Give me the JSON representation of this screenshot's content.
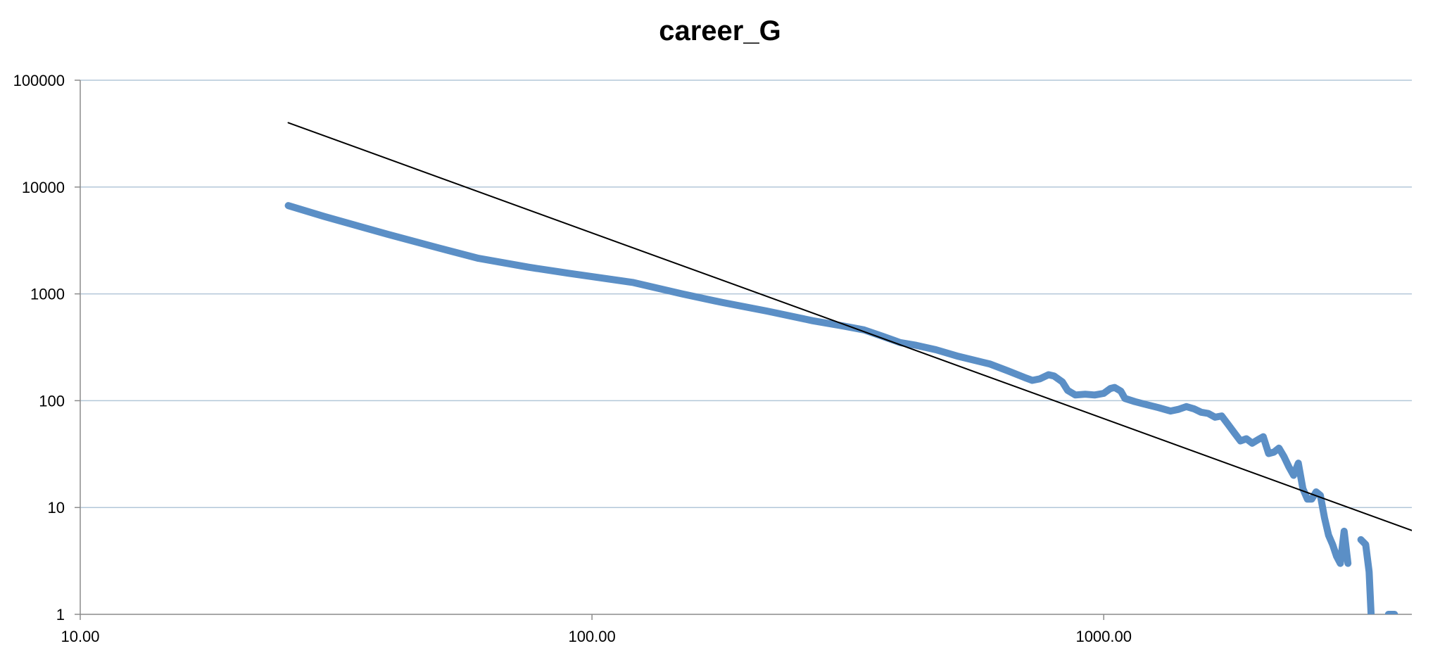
{
  "chart_data": {
    "type": "line",
    "title": "career_G",
    "xlabel": "",
    "ylabel": "",
    "x_scale": "log",
    "y_scale": "log",
    "xlim": [
      10,
      4000
    ],
    "ylim": [
      1,
      100000
    ],
    "x_ticks": [
      10,
      100,
      1000
    ],
    "x_tick_labels": [
      "10.00",
      "100.00",
      "1000.00"
    ],
    "y_ticks": [
      1,
      10,
      100,
      1000,
      10000,
      100000
    ],
    "y_tick_labels": [
      "1",
      "10",
      "100",
      "1000",
      "10000",
      "100000"
    ],
    "grid": "horizontal",
    "legend": "none",
    "series": [
      {
        "style": "data",
        "color": "#5b8fc6",
        "segments": [
          [
            [
              25.5,
              6700
            ],
            [
              30,
              5300
            ],
            [
              40,
              3600
            ],
            [
              50,
              2700
            ],
            [
              60,
              2150
            ],
            [
              75,
              1780
            ],
            [
              90,
              1560
            ],
            [
              100,
              1450
            ],
            [
              120,
              1280
            ],
            [
              150,
              1000
            ],
            [
              180,
              830
            ],
            [
              220,
              690
            ],
            [
              270,
              560
            ],
            [
              310,
              500
            ],
            [
              340,
              460
            ],
            [
              370,
              400
            ],
            [
              400,
              350
            ],
            [
              430,
              330
            ],
            [
              470,
              300
            ],
            [
              520,
              260
            ],
            [
              600,
              220
            ],
            [
              650,
              190
            ],
            [
              700,
              165
            ],
            [
              725,
              155
            ],
            [
              750,
              160
            ],
            [
              780,
              175
            ],
            [
              800,
              170
            ],
            [
              830,
              150
            ],
            [
              850,
              125
            ],
            [
              880,
              113
            ],
            [
              920,
              115
            ],
            [
              960,
              113
            ],
            [
              1000,
              117
            ],
            [
              1030,
              130
            ],
            [
              1050,
              133
            ],
            [
              1080,
              123
            ],
            [
              1100,
              105
            ],
            [
              1150,
              98
            ],
            [
              1200,
              93
            ],
            [
              1280,
              86
            ],
            [
              1350,
              80
            ],
            [
              1400,
              83
            ],
            [
              1450,
              88
            ],
            [
              1500,
              84
            ],
            [
              1550,
              78
            ],
            [
              1600,
              76
            ],
            [
              1650,
              70
            ],
            [
              1700,
              72
            ],
            [
              1750,
              60
            ],
            [
              1800,
              50
            ],
            [
              1850,
              42
            ],
            [
              1900,
              44
            ],
            [
              1950,
              40
            ],
            [
              2000,
              43
            ],
            [
              2050,
              46
            ],
            [
              2100,
              32
            ],
            [
              2150,
              33
            ],
            [
              2200,
              36
            ],
            [
              2250,
              30
            ],
            [
              2300,
              24
            ],
            [
              2350,
              20
            ],
            [
              2400,
              26
            ],
            [
              2450,
              15
            ],
            [
              2500,
              12
            ],
            [
              2550,
              12
            ],
            [
              2600,
              14
            ],
            [
              2650,
              13
            ],
            [
              2700,
              8
            ],
            [
              2750,
              5.5
            ],
            [
              2800,
              4.5
            ],
            [
              2850,
              3.5
            ],
            [
              2900,
              3
            ],
            [
              2950,
              6
            ],
            [
              3000,
              3
            ]
          ],
          [
            [
              3180,
              5
            ],
            [
              3250,
              4.5
            ],
            [
              3300,
              2.5
            ],
            [
              3330,
              1
            ],
            [
              3380,
              0.6
            ]
          ],
          [
            [
              3600,
              1.0
            ],
            [
              3700,
              1.0
            ]
          ]
        ]
      },
      {
        "style": "fit",
        "color": "#000000",
        "points": [
          [
            25.5,
            40000
          ],
          [
            4000,
            6.1
          ]
        ]
      }
    ]
  }
}
